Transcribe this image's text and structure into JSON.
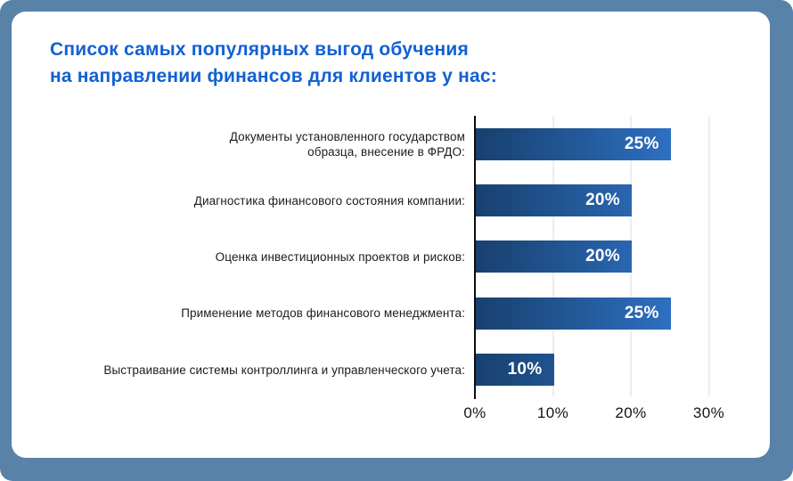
{
  "page": {
    "background_color": "#5982a9",
    "card_color": "#ffffff"
  },
  "title": {
    "line1": "Список самых популярных выгод обучения",
    "line2": "на направлении финансов для клиентов у нас:",
    "color": "#1161d4"
  },
  "chart_data": {
    "type": "bar",
    "orientation": "horizontal",
    "title": "Список самых популярных выгод обучения на направлении финансов для клиентов у нас:",
    "categories": [
      "Документы установленного государством\nобразца, внесение в ФРДО:",
      "Диагностика финансового состояния компании:",
      "Оценка инвестиционных проектов и рисков:",
      "Применение методов финансового менеджмента:",
      "Выстраивание системы контроллинга и управленческого учета:"
    ],
    "values": [
      25,
      20,
      20,
      25,
      10
    ],
    "value_labels": [
      "25%",
      "20%",
      "20%",
      "25%",
      "10%"
    ],
    "xlabel": "",
    "ylabel": "",
    "x_ticks": [
      "0%",
      "10%",
      "20%",
      "30%"
    ],
    "x_tick_values": [
      0,
      10,
      20,
      30
    ],
    "xlim": [
      0,
      33
    ],
    "grid": true,
    "legend": false,
    "bar_gradient_start": "#17406e",
    "bar_gradient_end": "#3379d1",
    "gridline_color": "#ededed",
    "axis_color": "#0e0e0e",
    "value_label_color": "#ffffff"
  }
}
